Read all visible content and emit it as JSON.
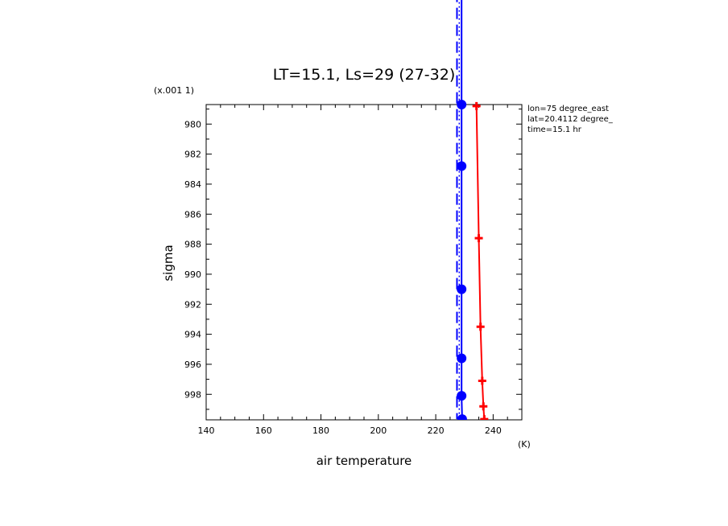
{
  "chart_data": {
    "type": "line",
    "title": "LT=15.1, Ls=29 (27-32)",
    "xlabel": "air temperature",
    "xunit": "(K)",
    "ylabel": "sigma",
    "yscale_label": "(x.001 1)",
    "xlim": [
      140,
      250
    ],
    "ylim": [
      999.7,
      978.7
    ],
    "x_ticks_major": [
      140,
      160,
      180,
      200,
      220,
      240
    ],
    "x_ticks_minor_step": 5,
    "y_ticks_major": [
      980,
      982,
      984,
      986,
      988,
      990,
      992,
      994,
      996,
      998
    ],
    "y_ticks_minor_step": 1,
    "grid": false,
    "annotations": [
      "lon=75 degree_east",
      "lat=20.4112 degree_",
      "time=15.1 hr"
    ],
    "series": [
      {
        "color": "#ff0000",
        "style": "solid",
        "marker": "plus",
        "points": [
          [
            234.2,
            978.8
          ],
          [
            235.0,
            987.6
          ],
          [
            235.6,
            993.5
          ],
          [
            236.2,
            997.1
          ],
          [
            236.6,
            998.8
          ],
          [
            236.9,
            999.65
          ]
        ]
      },
      {
        "color": "#0000ff",
        "style": "solid",
        "marker": "dot",
        "points": [
          [
            229.0,
            970.0
          ],
          [
            229.0,
            978.7
          ],
          [
            229.0,
            982.8
          ],
          [
            229.0,
            991.0
          ],
          [
            229.0,
            995.6
          ],
          [
            229.0,
            998.1
          ],
          [
            229.2,
            999.65
          ]
        ]
      },
      {
        "color": "#0000ff",
        "style": "dashed",
        "marker": "none",
        "points": [
          [
            227.4,
            970.0
          ],
          [
            227.4,
            999.65
          ]
        ]
      },
      {
        "color": "#0000ff",
        "style": "dotted",
        "marker": "none",
        "points": [
          [
            228.2,
            970.0
          ],
          [
            228.2,
            999.65
          ]
        ]
      }
    ]
  }
}
